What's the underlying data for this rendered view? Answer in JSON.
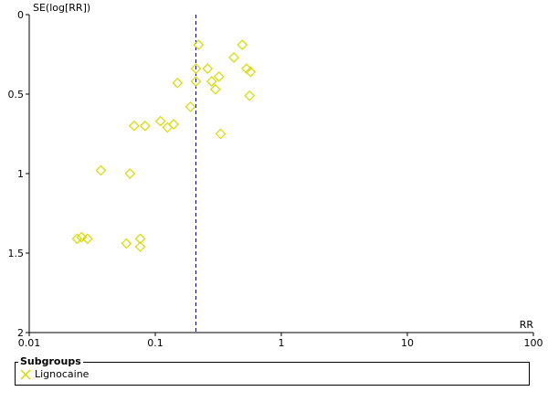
{
  "chart_data": {
    "type": "scatter",
    "title": "",
    "xlabel": "RR",
    "ylabel": "SE(log[RR])",
    "x_scale": "log",
    "xlim": [
      0.01,
      100
    ],
    "ylim": [
      0,
      2
    ],
    "y_inverted": true,
    "x_ticks": [
      "0.01",
      "0.1",
      "1",
      "10",
      "100"
    ],
    "y_ticks": [
      "0",
      "0.5",
      "1",
      "1.5",
      "2"
    ],
    "pooled_estimate_line": 0.21,
    "grid": false,
    "marker": "diamond",
    "marker_color": "#d9d900",
    "line_color": "#000080",
    "points": [
      {
        "x": 0.22,
        "y": 0.19
      },
      {
        "x": 0.49,
        "y": 0.19
      },
      {
        "x": 0.42,
        "y": 0.27
      },
      {
        "x": 0.21,
        "y": 0.34
      },
      {
        "x": 0.26,
        "y": 0.34
      },
      {
        "x": 0.53,
        "y": 0.34
      },
      {
        "x": 0.57,
        "y": 0.36
      },
      {
        "x": 0.32,
        "y": 0.39
      },
      {
        "x": 0.21,
        "y": 0.42
      },
      {
        "x": 0.28,
        "y": 0.42
      },
      {
        "x": 0.15,
        "y": 0.43
      },
      {
        "x": 0.3,
        "y": 0.47
      },
      {
        "x": 0.56,
        "y": 0.51
      },
      {
        "x": 0.19,
        "y": 0.58
      },
      {
        "x": 0.11,
        "y": 0.67
      },
      {
        "x": 0.14,
        "y": 0.69
      },
      {
        "x": 0.068,
        "y": 0.7
      },
      {
        "x": 0.083,
        "y": 0.7
      },
      {
        "x": 0.125,
        "y": 0.71
      },
      {
        "x": 0.33,
        "y": 0.75
      },
      {
        "x": 0.037,
        "y": 0.98
      },
      {
        "x": 0.063,
        "y": 1.0
      },
      {
        "x": 0.024,
        "y": 1.41
      },
      {
        "x": 0.026,
        "y": 1.4
      },
      {
        "x": 0.029,
        "y": 1.41
      },
      {
        "x": 0.076,
        "y": 1.41
      },
      {
        "x": 0.059,
        "y": 1.44
      },
      {
        "x": 0.076,
        "y": 1.46
      }
    ]
  },
  "legend": {
    "title": "Subgroups",
    "items": [
      {
        "label": "Lignocaine",
        "color": "#d9d900"
      }
    ]
  }
}
